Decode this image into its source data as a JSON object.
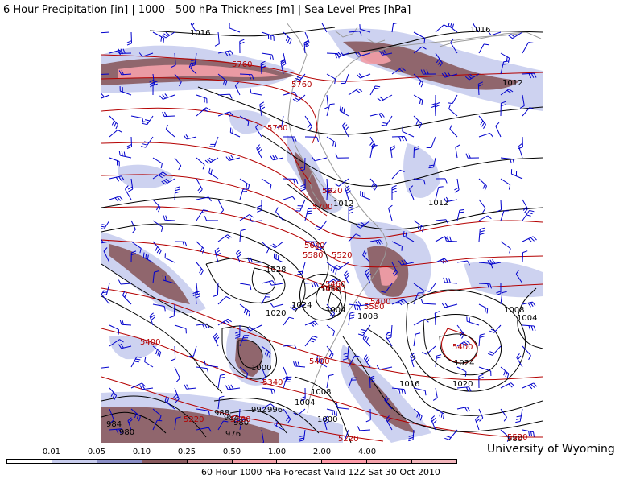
{
  "header": {
    "title": "6 Hour Precipitation [in] | 1000 - 500 hPa Thickness [m] | Sea Level Pres [hPa]"
  },
  "footer": {
    "credit": "University of Wyoming",
    "valid": "60 Hour 1000 hPa Forecast Valid 12Z Sat 30 Oct 2010"
  },
  "legend": {
    "labels": [
      "0.01",
      "0.05",
      "0.10",
      "0.25",
      "0.50",
      "1.00",
      "2.00",
      "4.00"
    ],
    "colors": [
      "#ffffff",
      "#c8cdee",
      "#8c90c8",
      "#8a5a5e",
      "#c88a90",
      "#f4a0a8",
      "#ffc8cc",
      "#ff9aa8",
      "#f5a3ac",
      "#f3b6bc"
    ]
  },
  "colors": {
    "isobar": "#000000",
    "thickness": "#b40000",
    "wind_barb": "#0000cc",
    "coast": "#9a9a9a",
    "precip_light": "#c8cdee",
    "precip_medium": "#8c90c8",
    "precip_heavy": "#8a5a5e",
    "precip_extreme": "#f4a0a8"
  },
  "map": {
    "pressure_labels": [
      "1016",
      "1016",
      "1012",
      "1012",
      "1012",
      "1028",
      "1016",
      "1024",
      "1020",
      "1004",
      "1008",
      "1008",
      "1004",
      "1024",
      "1020",
      "1016",
      "1000",
      "1008",
      "1004",
      "1000",
      "992",
      "996",
      "988",
      "984",
      "980",
      "976",
      "984",
      "980",
      "980"
    ],
    "thickness_labels": [
      "5760",
      "5760",
      "5760",
      "5820",
      "5700",
      "5640",
      "5580",
      "5520",
      "5460",
      "5400",
      "5580",
      "5400",
      "5400",
      "5400",
      "5340",
      "5220",
      "5280",
      "5220",
      "5520",
      "5400"
    ]
  }
}
